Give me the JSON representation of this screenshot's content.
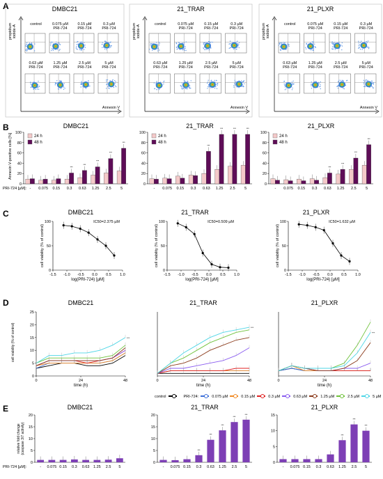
{
  "panels": {
    "A": "A",
    "B": "B",
    "C": "C",
    "D": "D",
    "E": "E"
  },
  "cell_lines": [
    "DMBC21",
    "21_TRAR",
    "21_PLXR"
  ],
  "flow": {
    "ylabel": "propidium iodide-A",
    "xlabel": "Annexin V",
    "row1": [
      "control",
      "0.075 µM PRI-724",
      "0.15 µM PRI-724",
      "0.3 µM PRI-724"
    ],
    "row2": [
      "0.63 µM PRI-724",
      "1.25 µM PRI-724",
      "2.5 µM PRI-724",
      "5 µM PRI-724"
    ]
  },
  "concentrations": [
    "-",
    "0.075",
    "0.15",
    "0.3",
    "0.63",
    "1.25",
    "2.5",
    "5"
  ],
  "pri_label": "PRI-724 [µM]:",
  "chart_data": [
    {
      "type": "bar",
      "panel": "B",
      "title": "DMBC21",
      "ylabel": "Annexin V-positive cells [%]",
      "ylim": [
        0,
        100
      ],
      "categories": [
        "-",
        "0.075",
        "0.15",
        "0.3",
        "0.63",
        "1.25",
        "2.5",
        "5"
      ],
      "series": [
        {
          "name": "24 h",
          "values": [
            9,
            7,
            7,
            9,
            12,
            17,
            21,
            25
          ],
          "color": "#f4c9c9"
        },
        {
          "name": "48 h",
          "values": [
            10,
            9,
            10,
            21,
            26,
            33,
            49,
            69
          ],
          "color": "#5e0d57"
        }
      ]
    },
    {
      "type": "bar",
      "panel": "B",
      "title": "21_TRAR",
      "ylim": [
        0,
        100
      ],
      "categories": [
        "-",
        "0.075",
        "0.15",
        "0.3",
        "0.63",
        "1.25",
        "2.5",
        "5"
      ],
      "series": [
        {
          "name": "24 h",
          "values": [
            10,
            11,
            15,
            17,
            20,
            28,
            34,
            36
          ],
          "color": "#f4c9c9"
        },
        {
          "name": "48 h",
          "values": [
            9,
            10,
            11,
            16,
            63,
            96,
            96,
            96
          ],
          "color": "#5e0d57"
        }
      ]
    },
    {
      "type": "bar",
      "panel": "B",
      "title": "21_PLXR",
      "ylim": [
        0,
        100
      ],
      "categories": [
        "-",
        "0.075",
        "0.15",
        "0.3",
        "0.63",
        "1.25",
        "2.5",
        "5"
      ],
      "series": [
        {
          "name": "24 h",
          "values": [
            10,
            8,
            9,
            10,
            12,
            19,
            28,
            36
          ],
          "color": "#f4c9c9"
        },
        {
          "name": "48 h",
          "values": [
            7,
            6,
            6,
            7,
            21,
            28,
            50,
            76
          ],
          "color": "#5e0d57"
        }
      ]
    },
    {
      "type": "line",
      "panel": "C",
      "title": "DMBC21",
      "ic50": "IC50=2.375 µM",
      "xlabel": "log(PRI-724) [µM]",
      "ylabel": "cell viability (% of control)",
      "xlim": [
        -1.5,
        1.0
      ],
      "ylim": [
        0,
        100
      ],
      "x": [
        -1.12,
        -0.82,
        -0.52,
        -0.22,
        0.1,
        0.4,
        0.7
      ],
      "y": [
        92,
        90,
        85,
        77,
        63,
        50,
        30
      ]
    },
    {
      "type": "line",
      "panel": "C",
      "title": "21_TRAR",
      "ic50": "IC50=0.509 µM",
      "xlabel": "log(PRI-724) [µM]",
      "ylabel": "cell viability (% of control)",
      "xlim": [
        -1.5,
        1.0
      ],
      "ylim": [
        0,
        100
      ],
      "x": [
        -1.12,
        -0.82,
        -0.52,
        -0.22,
        0.1,
        0.4,
        0.7
      ],
      "y": [
        96,
        88,
        74,
        35,
        12,
        6,
        5
      ]
    },
    {
      "type": "line",
      "panel": "C",
      "title": "21_PLXR",
      "ic50": "IC50=1.632 µM",
      "xlabel": "log(PRI-724) [µM]",
      "ylabel": "cell viability (% of control)",
      "xlim": [
        -1.5,
        1.0
      ],
      "ylim": [
        0,
        100
      ],
      "x": [
        -1.12,
        -0.82,
        -0.52,
        -0.22,
        0.1,
        0.4,
        0.7
      ],
      "y": [
        94,
        92,
        88,
        82,
        55,
        30,
        18
      ]
    },
    {
      "type": "line",
      "panel": "D",
      "title": "DMBC21",
      "xlabel": "time (h)",
      "ylabel": "% of cells with activated caspase 3/7",
      "xlim": [
        0,
        48
      ],
      "ylim": [
        0,
        25
      ],
      "series": [
        {
          "name": "control",
          "color": "#000000",
          "y": [
            3,
            4,
            5,
            5,
            4,
            4,
            5,
            8
          ]
        },
        {
          "name": "0.075 µM",
          "color": "#3d6fd8",
          "y": [
            3,
            5,
            5,
            5,
            5,
            5,
            6,
            9
          ]
        },
        {
          "name": "0.15 µM",
          "color": "#f08a24",
          "y": [
            4,
            5,
            5,
            5,
            5,
            5,
            6,
            9
          ]
        },
        {
          "name": "0.3 µM",
          "color": "#e02020",
          "y": [
            4,
            6,
            6,
            6,
            5,
            6,
            7,
            10
          ]
        },
        {
          "name": "0.63 µM",
          "color": "#8a5cf0",
          "y": [
            4,
            6,
            6,
            6,
            6,
            6,
            7,
            10
          ]
        },
        {
          "name": "1.25 µM",
          "color": "#8b3a1a",
          "y": [
            4,
            6,
            6,
            6,
            6,
            6,
            7,
            11
          ]
        },
        {
          "name": "2.5 µM",
          "color": "#6fc23a",
          "y": [
            5,
            7,
            7,
            7,
            7,
            7,
            8,
            12
          ]
        },
        {
          "name": "5 µM",
          "color": "#4dd6e6",
          "y": [
            5,
            8,
            8,
            9,
            9,
            10,
            12,
            15
          ]
        }
      ]
    },
    {
      "type": "line",
      "panel": "D",
      "title": "21_TRAR",
      "xlabel": "time (h)",
      "xlim": [
        0,
        48
      ],
      "ylim": [
        0,
        25
      ],
      "series": [
        {
          "name": "control",
          "color": "#000000",
          "y": [
            1,
            1,
            1,
            1,
            1,
            1,
            1,
            1
          ]
        },
        {
          "name": "0.075 µM",
          "color": "#3d6fd8",
          "y": [
            1,
            2,
            2,
            2,
            2,
            2,
            2,
            2
          ]
        },
        {
          "name": "0.15 µM",
          "color": "#f08a24",
          "y": [
            1,
            2,
            2,
            2,
            2,
            2,
            2,
            2
          ]
        },
        {
          "name": "0.3 µM",
          "color": "#e02020",
          "y": [
            1,
            2,
            2,
            2,
            2,
            2,
            3,
            3
          ]
        },
        {
          "name": "0.63 µM",
          "color": "#8a5cf0",
          "y": [
            1,
            3,
            3,
            4,
            5,
            6,
            8,
            11
          ]
        },
        {
          "name": "1.25 µM",
          "color": "#8b3a1a",
          "y": [
            1,
            4,
            5,
            7,
            10,
            12,
            14,
            15
          ]
        },
        {
          "name": "2.5 µM",
          "color": "#6fc23a",
          "y": [
            1,
            5,
            7,
            10,
            13,
            15,
            17,
            18
          ]
        },
        {
          "name": "5 µM",
          "color": "#4dd6e6",
          "y": [
            1,
            5,
            9,
            12,
            15,
            17,
            18,
            19
          ]
        }
      ]
    },
    {
      "type": "line",
      "panel": "D",
      "title": "21_PLXR",
      "xlabel": "time (h)",
      "xlim": [
        0,
        48
      ],
      "ylim": [
        0,
        25
      ],
      "series": [
        {
          "name": "control",
          "color": "#000000",
          "y": [
            2,
            3,
            2,
            2,
            2,
            2,
            2,
            2
          ]
        },
        {
          "name": "0.075 µM",
          "color": "#3d6fd8",
          "y": [
            2,
            3,
            2,
            2,
            2,
            2,
            2,
            2
          ]
        },
        {
          "name": "0.15 µM",
          "color": "#f08a24",
          "y": [
            2,
            4,
            2,
            2,
            2,
            2,
            2,
            2
          ]
        },
        {
          "name": "0.3 µM",
          "color": "#e02020",
          "y": [
            2,
            4,
            3,
            2,
            2,
            2,
            2,
            2
          ]
        },
        {
          "name": "0.63 µM",
          "color": "#8a5cf0",
          "y": [
            2,
            4,
            3,
            2,
            2,
            3,
            3,
            5
          ]
        },
        {
          "name": "1.25 µM",
          "color": "#8b3a1a",
          "y": [
            2,
            4,
            3,
            2,
            2,
            3,
            6,
            13
          ]
        },
        {
          "name": "2.5 µM",
          "color": "#6fc23a",
          "y": [
            2,
            4,
            3,
            3,
            3,
            5,
            12,
            21
          ]
        },
        {
          "name": "5 µM",
          "color": "#4dd6e6",
          "y": [
            2,
            4,
            3,
            3,
            3,
            4,
            9,
            17
          ]
        }
      ]
    },
    {
      "type": "bar",
      "panel": "E",
      "title": "DMBC21",
      "ylabel": "relative fold change (caspase 3/7 activity)",
      "ylim": [
        0,
        20
      ],
      "categories": [
        "-",
        "0.075",
        "0.15",
        "0.3",
        "0.63",
        "1.25",
        "2.5",
        "5"
      ],
      "values": [
        1,
        1,
        1,
        1.2,
        1,
        1,
        1.1,
        1.7
      ],
      "color": "#7d3fb5"
    },
    {
      "type": "bar",
      "panel": "E",
      "title": "21_TRAR",
      "ylim": [
        0,
        20
      ],
      "categories": [
        "-",
        "0.075",
        "0.15",
        "0.3",
        "0.63",
        "1.25",
        "2.5",
        "5"
      ],
      "values": [
        1,
        0.9,
        1.3,
        3,
        9.5,
        13.5,
        17,
        18
      ],
      "color": "#7d3fb5"
    },
    {
      "type": "bar",
      "panel": "E",
      "title": "21_PLXR",
      "ylim": [
        0,
        15
      ],
      "categories": [
        "-",
        "0.075",
        "0.15",
        "0.3",
        "0.63",
        "1.25",
        "2.5",
        "5"
      ],
      "values": [
        1,
        1,
        1,
        1,
        2.5,
        7,
        12,
        10
      ],
      "color": "#7d3fb5"
    }
  ],
  "legend_d": {
    "control": "control",
    "pri": "PRI-724:",
    "items": [
      "0.075 µM",
      "0.15 µM",
      "0.3 µM",
      "0.63 µM",
      "1.25 µM",
      "2.5 µM",
      "5 µM"
    ]
  },
  "ticks": {
    "b_y": [
      "0",
      "20",
      "40",
      "60",
      "80",
      "100"
    ],
    "c_x": [
      "-1.5",
      "-1.0",
      "-0.5",
      "0.0",
      "0.5",
      "1.0"
    ],
    "c_y": [
      "0",
      "50",
      "100"
    ],
    "d_x": [
      "0",
      "24",
      "48"
    ],
    "d_y_left": [
      "0",
      "5",
      "10",
      "15",
      "20",
      "25"
    ],
    "e_y_left": [
      "0",
      "5",
      "10",
      "15",
      "20"
    ],
    "e_y_plxr": [
      "0",
      "5",
      "10",
      "15"
    ]
  },
  "legend_b": [
    "24 h",
    "48 h"
  ],
  "sig": "***"
}
